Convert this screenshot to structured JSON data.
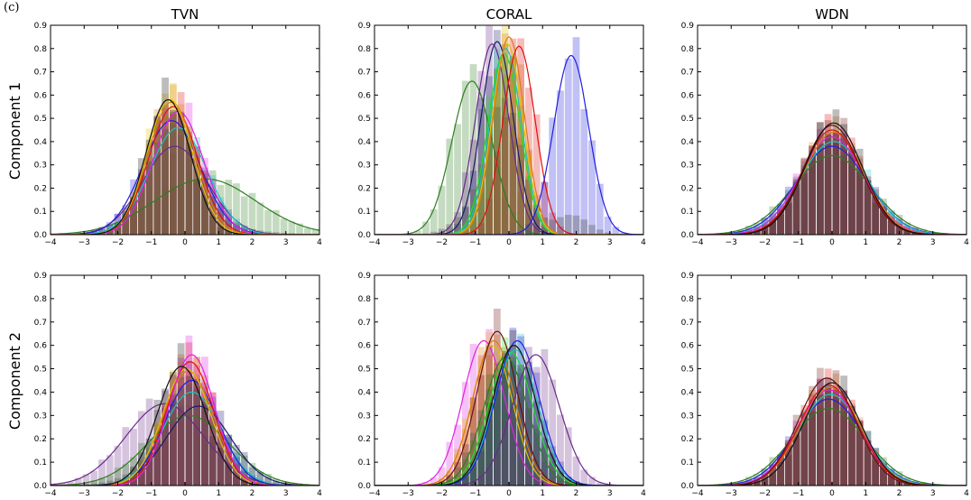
{
  "caption": "(c)",
  "row_labels": [
    "Component 1",
    "Component 2"
  ],
  "col_titles": [
    "TVN",
    "CORAL",
    "WDN"
  ],
  "colors": {
    "green": "#2e7d1f",
    "blue": "#1f1fe0",
    "red": "#e01010",
    "magenta": "#e020e0",
    "orange": "#e07a10",
    "yellow": "#e0c000",
    "lime": "#20e020",
    "cyan": "#20c0c0",
    "purple": "#6a2a8a",
    "navy": "#1a1a6a",
    "black": "#111111",
    "darkred": "#6a1010",
    "gray": "#555555"
  },
  "chart_data": [
    {
      "type": "area",
      "title": "TVN",
      "ylabel": "Component 1",
      "xlim": [
        -4,
        4
      ],
      "ylim": [
        0,
        0.9
      ],
      "xticks": [
        -4,
        -3,
        -2,
        -1,
        0,
        1,
        2,
        3,
        4
      ],
      "yticks": [
        0.0,
        0.1,
        0.2,
        0.3,
        0.4,
        0.5,
        0.6,
        0.7,
        0.8,
        0.9
      ],
      "grid": false,
      "series": [
        {
          "color": "green",
          "mu": 0.6,
          "sigma": 1.5,
          "peak": 0.24
        },
        {
          "color": "purple",
          "mu": -0.3,
          "sigma": 0.95,
          "peak": 0.38
        },
        {
          "color": "blue",
          "mu": -0.4,
          "sigma": 0.85,
          "peak": 0.49
        },
        {
          "color": "cyan",
          "mu": -0.2,
          "sigma": 0.85,
          "peak": 0.46
        },
        {
          "color": "magenta",
          "mu": -0.2,
          "sigma": 0.75,
          "peak": 0.53
        },
        {
          "color": "red",
          "mu": -0.35,
          "sigma": 0.72,
          "peak": 0.55
        },
        {
          "color": "orange",
          "mu": -0.4,
          "sigma": 0.7,
          "peak": 0.57
        },
        {
          "color": "yellow",
          "mu": -0.45,
          "sigma": 0.68,
          "peak": 0.58
        },
        {
          "color": "black",
          "mu": -0.5,
          "sigma": 0.66,
          "peak": 0.58
        }
      ],
      "hist_peak": 0.61
    },
    {
      "type": "area",
      "title": "CORAL",
      "xlim": [
        -4,
        4
      ],
      "ylim": [
        0,
        0.9
      ],
      "xticks": [
        -4,
        -3,
        -2,
        -1,
        0,
        1,
        2,
        3,
        4
      ],
      "yticks": [
        0.0,
        0.1,
        0.2,
        0.3,
        0.4,
        0.5,
        0.6,
        0.7,
        0.8,
        0.9
      ],
      "grid": false,
      "series": [
        {
          "color": "green",
          "mu": -1.1,
          "sigma": 0.6,
          "peak": 0.66
        },
        {
          "color": "purple",
          "mu": -0.5,
          "sigma": 0.5,
          "peak": 0.82
        },
        {
          "color": "navy",
          "mu": -0.35,
          "sigma": 0.48,
          "peak": 0.83
        },
        {
          "color": "cyan",
          "mu": -0.1,
          "sigma": 0.47,
          "peak": 0.8
        },
        {
          "color": "lime",
          "mu": -0.15,
          "sigma": 0.48,
          "peak": 0.78
        },
        {
          "color": "yellow",
          "mu": -0.05,
          "sigma": 0.46,
          "peak": 0.82
        },
        {
          "color": "orange",
          "mu": 0.0,
          "sigma": 0.46,
          "peak": 0.85
        },
        {
          "color": "red",
          "mu": 0.3,
          "sigma": 0.48,
          "peak": 0.81
        },
        {
          "color": "blue",
          "mu": 1.85,
          "sigma": 0.52,
          "peak": 0.77
        }
      ],
      "hist_peak": 0.88
    },
    {
      "type": "area",
      "title": "WDN",
      "xlim": [
        -4,
        4
      ],
      "ylim": [
        0,
        0.9
      ],
      "xticks": [
        -4,
        -3,
        -2,
        -1,
        0,
        1,
        2,
        3,
        4
      ],
      "yticks": [
        0.0,
        0.1,
        0.2,
        0.3,
        0.4,
        0.5,
        0.6,
        0.7,
        0.8,
        0.9
      ],
      "grid": false,
      "series": [
        {
          "color": "green",
          "mu": 0.0,
          "sigma": 1.15,
          "peak": 0.34
        },
        {
          "color": "blue",
          "mu": 0.0,
          "sigma": 1.05,
          "peak": 0.38
        },
        {
          "color": "cyan",
          "mu": 0.05,
          "sigma": 1.0,
          "peak": 0.4
        },
        {
          "color": "magenta",
          "mu": 0.0,
          "sigma": 0.95,
          "peak": 0.42
        },
        {
          "color": "orange",
          "mu": 0.05,
          "sigma": 0.9,
          "peak": 0.44
        },
        {
          "color": "red",
          "mu": 0.0,
          "sigma": 0.88,
          "peak": 0.45
        },
        {
          "color": "darkred",
          "mu": 0.0,
          "sigma": 0.85,
          "peak": 0.47
        },
        {
          "color": "black",
          "mu": 0.05,
          "sigma": 0.85,
          "peak": 0.48
        }
      ],
      "hist_peak": 0.5
    },
    {
      "type": "area",
      "title": "TVN",
      "ylabel": "Component 2",
      "xlim": [
        -4,
        4
      ],
      "ylim": [
        0,
        0.9
      ],
      "xticks": [
        -4,
        -3,
        -2,
        -1,
        0,
        1,
        2,
        3,
        4
      ],
      "yticks": [
        0.0,
        0.1,
        0.2,
        0.3,
        0.4,
        0.5,
        0.6,
        0.7,
        0.8,
        0.9
      ],
      "grid": false,
      "series": [
        {
          "color": "purple",
          "mu": -0.6,
          "sigma": 1.15,
          "peak": 0.35
        },
        {
          "color": "green",
          "mu": 0.1,
          "sigma": 1.2,
          "peak": 0.3
        },
        {
          "color": "navy",
          "mu": 0.4,
          "sigma": 0.95,
          "peak": 0.34
        },
        {
          "color": "cyan",
          "mu": 0.2,
          "sigma": 0.85,
          "peak": 0.4
        },
        {
          "color": "blue",
          "mu": 0.2,
          "sigma": 0.8,
          "peak": 0.45
        },
        {
          "color": "orange",
          "mu": 0.1,
          "sigma": 0.75,
          "peak": 0.49
        },
        {
          "color": "yellow",
          "mu": 0.05,
          "sigma": 0.72,
          "peak": 0.5
        },
        {
          "color": "red",
          "mu": 0.15,
          "sigma": 0.7,
          "peak": 0.53
        },
        {
          "color": "magenta",
          "mu": 0.2,
          "sigma": 0.68,
          "peak": 0.56
        },
        {
          "color": "black",
          "mu": -0.1,
          "sigma": 0.72,
          "peak": 0.51
        }
      ],
      "hist_peak": 0.6
    },
    {
      "type": "area",
      "title": "CORAL",
      "xlim": [
        -4,
        4
      ],
      "ylim": [
        0,
        0.9
      ],
      "xticks": [
        -4,
        -3,
        -2,
        -1,
        0,
        1,
        2,
        3,
        4
      ],
      "yticks": [
        0.0,
        0.1,
        0.2,
        0.3,
        0.4,
        0.5,
        0.6,
        0.7,
        0.8,
        0.9
      ],
      "grid": false,
      "series": [
        {
          "color": "magenta",
          "mu": -0.75,
          "sigma": 0.62,
          "peak": 0.62
        },
        {
          "color": "yellow",
          "mu": -0.5,
          "sigma": 0.6,
          "peak": 0.6
        },
        {
          "color": "orange",
          "mu": -0.45,
          "sigma": 0.62,
          "peak": 0.62
        },
        {
          "color": "darkred",
          "mu": -0.35,
          "sigma": 0.6,
          "peak": 0.66
        },
        {
          "color": "green",
          "mu": -0.1,
          "sigma": 0.65,
          "peak": 0.55
        },
        {
          "color": "lime",
          "mu": 0.05,
          "sigma": 0.65,
          "peak": 0.57
        },
        {
          "color": "cyan",
          "mu": 0.2,
          "sigma": 0.66,
          "peak": 0.58
        },
        {
          "color": "blue",
          "mu": 0.25,
          "sigma": 0.65,
          "peak": 0.62
        },
        {
          "color": "black",
          "mu": 0.15,
          "sigma": 0.64,
          "peak": 0.6
        },
        {
          "color": "purple",
          "mu": 0.8,
          "sigma": 0.7,
          "peak": 0.56
        }
      ],
      "hist_peak": 0.68
    },
    {
      "type": "area",
      "title": "WDN",
      "xlim": [
        -4,
        4
      ],
      "ylim": [
        0,
        0.9
      ],
      "xticks": [
        -4,
        -3,
        -2,
        -1,
        0,
        1,
        2,
        3,
        4
      ],
      "yticks": [
        0.0,
        0.1,
        0.2,
        0.3,
        0.4,
        0.5,
        0.6,
        0.7,
        0.8,
        0.9
      ],
      "grid": false,
      "series": [
        {
          "color": "green",
          "mu": -0.1,
          "sigma": 1.1,
          "peak": 0.33
        },
        {
          "color": "blue",
          "mu": -0.1,
          "sigma": 1.0,
          "peak": 0.37
        },
        {
          "color": "cyan",
          "mu": -0.05,
          "sigma": 0.95,
          "peak": 0.39
        },
        {
          "color": "magenta",
          "mu": -0.1,
          "sigma": 0.92,
          "peak": 0.41
        },
        {
          "color": "orange",
          "mu": -0.05,
          "sigma": 0.9,
          "peak": 0.42
        },
        {
          "color": "red",
          "mu": -0.1,
          "sigma": 0.88,
          "peak": 0.43
        },
        {
          "color": "black",
          "mu": 0.0,
          "sigma": 0.85,
          "peak": 0.44
        },
        {
          "color": "darkred",
          "mu": -0.15,
          "sigma": 0.85,
          "peak": 0.46
        }
      ],
      "hist_peak": 0.48
    }
  ]
}
